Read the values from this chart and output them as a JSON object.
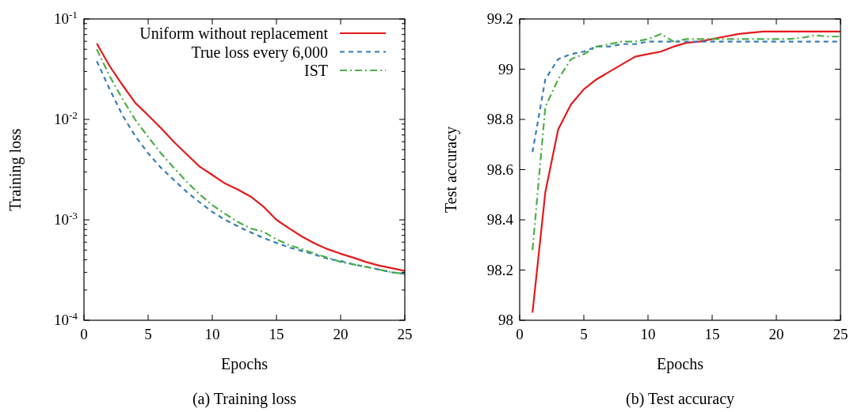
{
  "chart_data": [
    {
      "type": "line",
      "xlabel": "Epochs",
      "ylabel": "Training loss",
      "annotations": [
        "(a) Training loss"
      ],
      "log": "y",
      "legend": "top right",
      "xlim": [
        0,
        25
      ],
      "xticks": [
        0,
        5,
        10,
        15,
        20,
        25
      ],
      "ylim": [
        0.0001,
        0.1
      ],
      "yticks": [
        {
          "value": 0.0001,
          "label": "10$^{-4}$"
        },
        {
          "value": 0.0002,
          "label": null
        },
        {
          "value": 0.0003,
          "label": null
        },
        {
          "value": 0.0004,
          "label": null
        },
        {
          "value": 0.0005,
          "label": null
        },
        {
          "value": 0.0006,
          "label": null
        },
        {
          "value": 0.0007,
          "label": null
        },
        {
          "value": 0.0008,
          "label": null
        },
        {
          "value": 0.0009,
          "label": null
        },
        {
          "value": 0.001,
          "label": "10$^{-3}$"
        },
        {
          "value": 0.002,
          "label": null
        },
        {
          "value": 0.003,
          "label": null
        },
        {
          "value": 0.004,
          "label": null
        },
        {
          "value": 0.005,
          "label": null
        },
        {
          "value": 0.006,
          "label": null
        },
        {
          "value": 0.007,
          "label": null
        },
        {
          "value": 0.008,
          "label": null
        },
        {
          "value": 0.009,
          "label": null
        },
        {
          "value": 0.01,
          "label": "10$^{-2}$"
        },
        {
          "value": 0.02,
          "label": null
        },
        {
          "value": 0.03,
          "label": null
        },
        {
          "value": 0.04,
          "label": null
        },
        {
          "value": 0.05,
          "label": null
        },
        {
          "value": 0.06,
          "label": null
        },
        {
          "value": 0.07,
          "label": null
        },
        {
          "value": 0.08,
          "label": null
        },
        {
          "value": 0.09,
          "label": null
        },
        {
          "value": 0.1,
          "label": "10$^{-1}$"
        }
      ],
      "x": [
        1,
        2,
        3,
        4,
        5,
        6,
        7,
        8,
        9,
        10,
        11,
        12,
        13,
        14,
        15,
        16,
        17,
        18,
        19,
        20,
        21,
        22,
        23,
        24,
        25
      ],
      "series": [
        {
          "name": "Uniform without replacement",
          "color": "#e41a1c",
          "line_style": "solid",
          "values": [
            0.057,
            0.034,
            0.022,
            0.0146,
            0.011,
            0.0082,
            0.006,
            0.0045,
            0.0034,
            0.0028,
            0.0023,
            0.002,
            0.0017,
            0.00135,
            0.001,
            0.00082,
            0.00068,
            0.00058,
            0.00051,
            0.00046,
            0.00042,
            0.00038,
            0.00035,
            0.00033,
            0.00031
          ]
        },
        {
          "name": "True loss every 6,000",
          "color": "#377eb8",
          "line_style": "dashed",
          "values": [
            0.038,
            0.02,
            0.011,
            0.0068,
            0.0046,
            0.0033,
            0.0025,
            0.0019,
            0.0015,
            0.0012,
            0.001,
            0.00086,
            0.00075,
            0.00066,
            0.00059,
            0.00053,
            0.00049,
            0.00045,
            0.00041,
            0.00039,
            0.00036,
            0.00034,
            0.00032,
            0.0003,
            0.00029
          ]
        },
        {
          "name": "IST",
          "color": "#4daf4a",
          "line_style": "dashdot",
          "values": [
            0.05,
            0.027,
            0.016,
            0.0099,
            0.0067,
            0.0046,
            0.0033,
            0.0024,
            0.0018,
            0.0014,
            0.00115,
            0.00095,
            0.00082,
            0.00076,
            0.00064,
            0.00056,
            0.00051,
            0.00046,
            0.00042,
            0.00038,
            0.00036,
            0.00034,
            0.00032,
            0.0003,
            0.00029
          ]
        }
      ]
    },
    {
      "type": "line",
      "xlabel": "Epochs",
      "ylabel": "Test accuracy",
      "annotations": [
        "(b) Test accuracy"
      ],
      "xlim": [
        0,
        25
      ],
      "xticks": [
        0,
        5,
        10,
        15,
        20,
        25
      ],
      "ylim": [
        98,
        99.2
      ],
      "yticks": [
        98,
        98.2,
        98.4,
        98.6,
        98.8,
        99,
        99.2
      ],
      "x": [
        1,
        2,
        3,
        4,
        5,
        6,
        7,
        8,
        9,
        10,
        11,
        12,
        13,
        14,
        15,
        16,
        17,
        18,
        19,
        20,
        21,
        22,
        23,
        24,
        25
      ],
      "series": [
        {
          "color": "#e41a1c",
          "line_style": "solid",
          "values": [
            98.03,
            98.51,
            98.76,
            98.86,
            98.92,
            98.96,
            98.99,
            99.02,
            99.05,
            99.06,
            99.07,
            99.09,
            99.105,
            99.11,
            99.12,
            99.13,
            99.14,
            99.145,
            99.15,
            99.15,
            99.15,
            99.15,
            99.15,
            99.15,
            99.15
          ]
        },
        {
          "color": "#377eb8",
          "line_style": "dashed",
          "values": [
            98.67,
            98.96,
            99.04,
            99.06,
            99.07,
            99.09,
            99.09,
            99.1,
            99.1,
            99.11,
            99.11,
            99.11,
            99.11,
            99.11,
            99.11,
            99.11,
            99.11,
            99.11,
            99.11,
            99.11,
            99.11,
            99.11,
            99.11,
            99.11,
            99.11
          ]
        },
        {
          "color": "#4daf4a",
          "line_style": "dashdot",
          "values": [
            98.28,
            98.85,
            98.96,
            99.04,
            99.06,
            99.09,
            99.1,
            99.11,
            99.11,
            99.12,
            99.14,
            99.11,
            99.12,
            99.12,
            99.12,
            99.12,
            99.12,
            99.12,
            99.12,
            99.12,
            99.12,
            99.125,
            99.135,
            99.13,
            99.13
          ]
        }
      ]
    }
  ]
}
